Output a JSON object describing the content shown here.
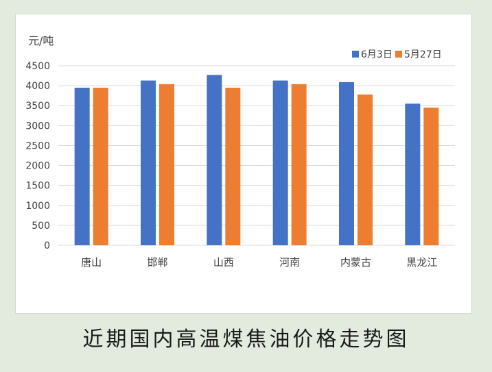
{
  "caption": "近期国内高温煤焦油价格走势图",
  "chart_data": {
    "type": "bar",
    "ylabel": "元/吨",
    "ylim": [
      0,
      4500
    ],
    "yticks": [
      0,
      500,
      1000,
      1500,
      2000,
      2500,
      3000,
      3500,
      4000,
      4500
    ],
    "categories": [
      "唐山",
      "邯郸",
      "山西",
      "河南",
      "内蒙古",
      "黑龙江"
    ],
    "series": [
      {
        "name": "6月3日",
        "color": "#4472c4",
        "values": [
          3950,
          4130,
          4270,
          4130,
          4090,
          3550
        ]
      },
      {
        "name": "5月27日",
        "color": "#ed7d31",
        "values": [
          3950,
          4040,
          3950,
          4040,
          3780,
          3450
        ]
      }
    ],
    "grid": true,
    "legend": "top-right"
  }
}
